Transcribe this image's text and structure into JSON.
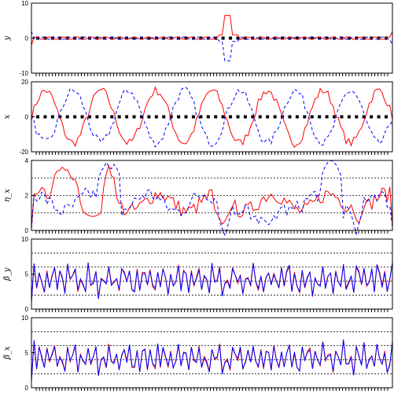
{
  "colors": {
    "primary": "#ff0000",
    "secondary": "#0000ff",
    "axis": "#000000",
    "grid": "#000000",
    "background": "#ffffff"
  },
  "chart_data": [
    {
      "type": "line",
      "ylabel": "y",
      "ylim": [
        -10,
        10
      ],
      "yticks": [
        -10,
        0,
        10
      ],
      "grid_y": [],
      "series": [
        {
          "style": "solid",
          "color": "#ff0000",
          "peaks": [
            {
              "x": 0.545,
              "v": 6.5
            }
          ]
        },
        {
          "style": "dashed",
          "color": "#0000ff",
          "peaks": [
            {
              "x": 0.545,
              "v": -6.5
            }
          ]
        }
      ],
      "note": "near-zero orbit with a single localized bump"
    },
    {
      "type": "line",
      "ylabel": "x",
      "ylim": [
        -20,
        20
      ],
      "yticks": [
        -20,
        0,
        20
      ],
      "grid_y": [],
      "series": [
        {
          "style": "solid",
          "color": "#ff0000",
          "amplitude": 15,
          "cycles": 6.5
        },
        {
          "style": "dashed",
          "color": "#0000ff",
          "amplitude": 15,
          "cycles": 6.5
        }
      ]
    },
    {
      "type": "line",
      "ylabel": "η_x",
      "ylim": [
        0,
        4
      ],
      "yticks": [
        0,
        2,
        4
      ],
      "grid_y": [
        1,
        2,
        3
      ],
      "series": [
        {
          "style": "solid",
          "color": "#ff0000"
        },
        {
          "style": "dashed",
          "color": "#0000ff"
        }
      ]
    },
    {
      "type": "line",
      "ylabel": "β_y",
      "ylim": [
        0,
        10
      ],
      "yticks": [
        0,
        5,
        10
      ],
      "grid_y": [
        2,
        4,
        6,
        8
      ],
      "series": [
        {
          "style": "solid",
          "color": "#ff0000"
        },
        {
          "style": "solid",
          "color": "#0000ff"
        }
      ]
    },
    {
      "type": "line",
      "ylabel": "β_x",
      "ylim": [
        0,
        10
      ],
      "yticks": [
        0,
        5,
        10
      ],
      "grid_y": [
        2,
        4,
        6,
        8
      ],
      "series": [
        {
          "style": "solid",
          "color": "#ff0000"
        },
        {
          "style": "solid",
          "color": "#0000ff"
        }
      ]
    }
  ]
}
